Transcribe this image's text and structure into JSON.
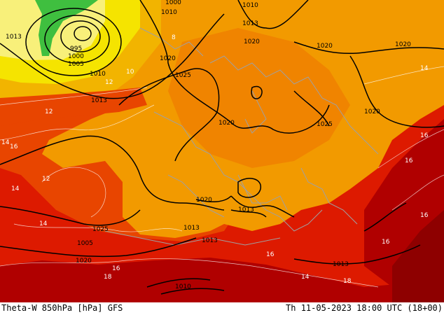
{
  "footer": {
    "left_text": "Theta-W 850hPa [hPa] GFS",
    "right_text": "Th 11-05-2023 18:00 UTC (18+00)"
  },
  "isobar_labels": [
    "995",
    "1000",
    "1005",
    "1010",
    "1013",
    "1010",
    "1000",
    "1010",
    "1013",
    "1020",
    "1020",
    "1025",
    "1020",
    "1020",
    "1025",
    "1020",
    "1020",
    "1013",
    "1013",
    "1025",
    "1020",
    "1020",
    "1013",
    "1013",
    "1010",
    "1005",
    "1013"
  ],
  "theta_labels": [
    "12",
    "12",
    "14",
    "14",
    "16",
    "16",
    "16",
    "18",
    "18",
    "16",
    "14",
    "14",
    "14",
    "16",
    "16",
    "16",
    "12",
    "10",
    "8"
  ],
  "colors": {
    "cold_green": "#3fbf3f",
    "yellow": "#f5e400",
    "gold": "#f2b400",
    "orange": "#f29a00",
    "dark_orange": "#ee7a00",
    "red_orange": "#e84500",
    "red": "#dd1a00",
    "dark_red": "#c00000",
    "deep_red": "#9a0000",
    "coast": "#a0a0a0"
  }
}
